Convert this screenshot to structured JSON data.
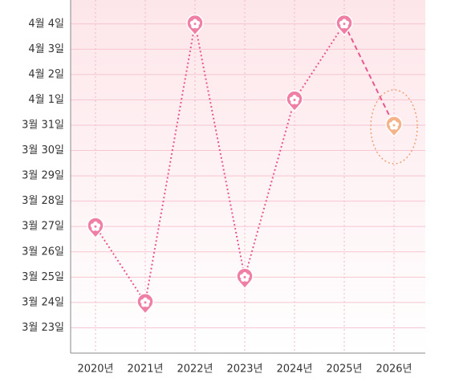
{
  "chart_data": {
    "type": "line",
    "categories": [
      "2020년",
      "2021년",
      "2022년",
      "2023년",
      "2024년",
      "2025년",
      "2026년"
    ],
    "series": [
      {
        "color": "#e8578f",
        "style": "dotted",
        "values": [
          27,
          24,
          35,
          25,
          32,
          35,
          null
        ]
      },
      {
        "color": "#e8578f",
        "style": "dashed",
        "marker_color": "#f5b38a",
        "values": [
          null,
          null,
          null,
          null,
          null,
          35,
          31
        ]
      }
    ],
    "ylim": [
      22,
      35.5
    ],
    "yticks": [
      {
        "value": 23,
        "label": "3월 23일"
      },
      {
        "value": 24,
        "label": "3월 24일"
      },
      {
        "value": 25,
        "label": "3월 25일"
      },
      {
        "value": 26,
        "label": "3월 26일"
      },
      {
        "value": 27,
        "label": "3월 27일"
      },
      {
        "value": 28,
        "label": "3월 28일"
      },
      {
        "value": 29,
        "label": "3월 29일"
      },
      {
        "value": 30,
        "label": "3월 30일"
      },
      {
        "value": 31,
        "label": "3월 31일"
      },
      {
        "value": 32,
        "label": "4월 1일"
      },
      {
        "value": 33,
        "label": "4월 2일"
      },
      {
        "value": 34,
        "label": "4월 3일"
      },
      {
        "value": 35,
        "label": "4월 4일"
      }
    ],
    "grid": true
  }
}
